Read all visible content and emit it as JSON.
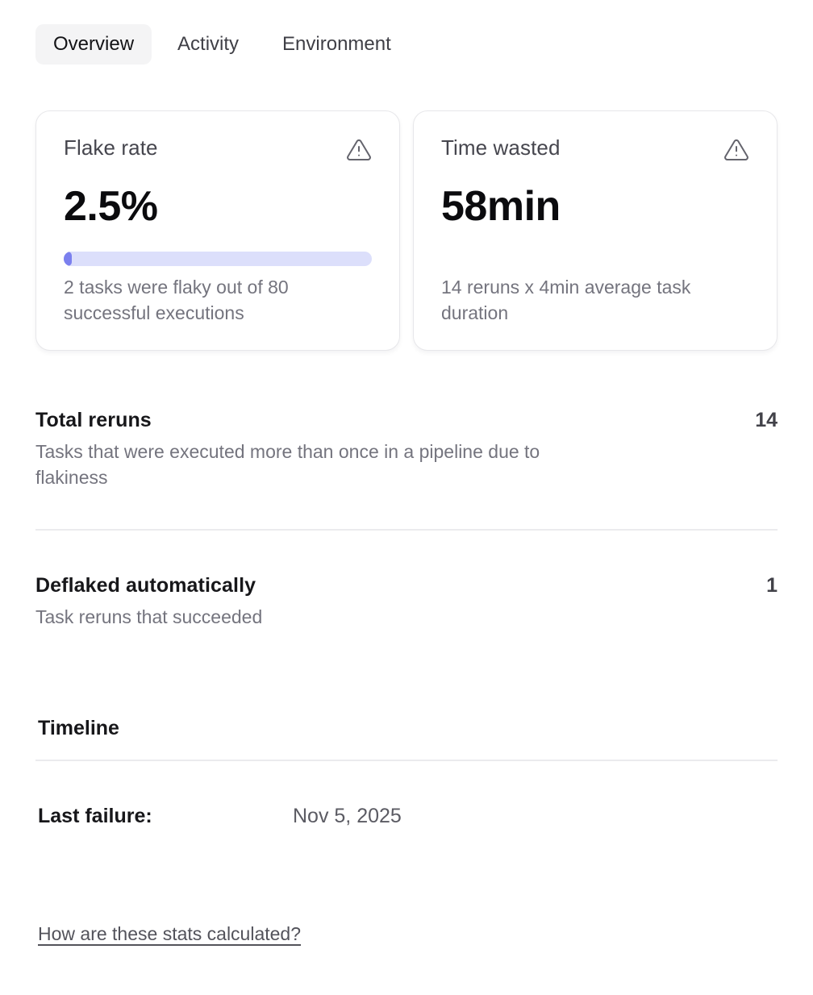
{
  "tabs": [
    {
      "label": "Overview",
      "active": true
    },
    {
      "label": "Activity",
      "active": false
    },
    {
      "label": "Environment",
      "active": false
    }
  ],
  "cards": [
    {
      "title": "Flake rate",
      "value": "2.5%",
      "progress_percent": 2.5,
      "description": "2 tasks were flaky out of 80 successful executions",
      "icon": "warning-triangle-icon"
    },
    {
      "title": "Time wasted",
      "value": "58min",
      "description": "14 reruns x 4min average task duration",
      "icon": "warning-triangle-icon"
    }
  ],
  "stats": [
    {
      "title": "Total reruns",
      "value": "14",
      "description": "Tasks that were executed more than once in a pipeline due to flakiness"
    },
    {
      "title": "Deflaked automatically",
      "value": "1",
      "description": "Task reruns that succeeded"
    }
  ],
  "timeline": {
    "heading": "Timeline",
    "rows": [
      {
        "label": "Last failure:",
        "value": "Nov 5, 2025"
      }
    ]
  },
  "footer": {
    "link_label": "How are these stats calculated?"
  },
  "colors": {
    "accent": "#7b80ee",
    "accent_track": "#dcdffb",
    "active_tab_bg": "#f4f4f5",
    "muted_text": "#74747e",
    "divider": "#ebebee"
  }
}
